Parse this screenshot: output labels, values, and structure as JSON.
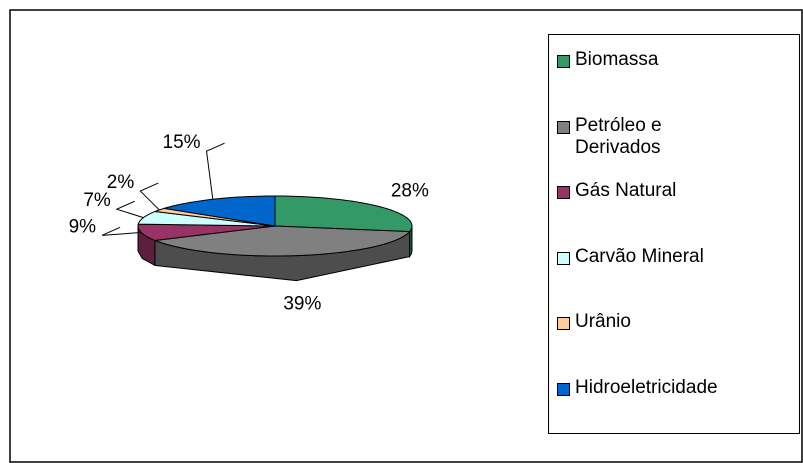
{
  "chart_data": {
    "type": "pie",
    "categories": [
      "Biomassa",
      "Petróleo e Derivados",
      "Gás Natural",
      "Carvão Mineral",
      "Urânio",
      "Hidroeletricidade"
    ],
    "values": [
      28,
      39,
      9,
      7,
      2,
      15
    ],
    "value_labels": [
      "28%",
      "39%",
      "9%",
      "7%",
      "2%",
      "15%"
    ],
    "colors": [
      "#339966",
      "#808080",
      "#993366",
      "#ccffff",
      "#ffcc99",
      "#0066cc"
    ],
    "legend": "right"
  }
}
